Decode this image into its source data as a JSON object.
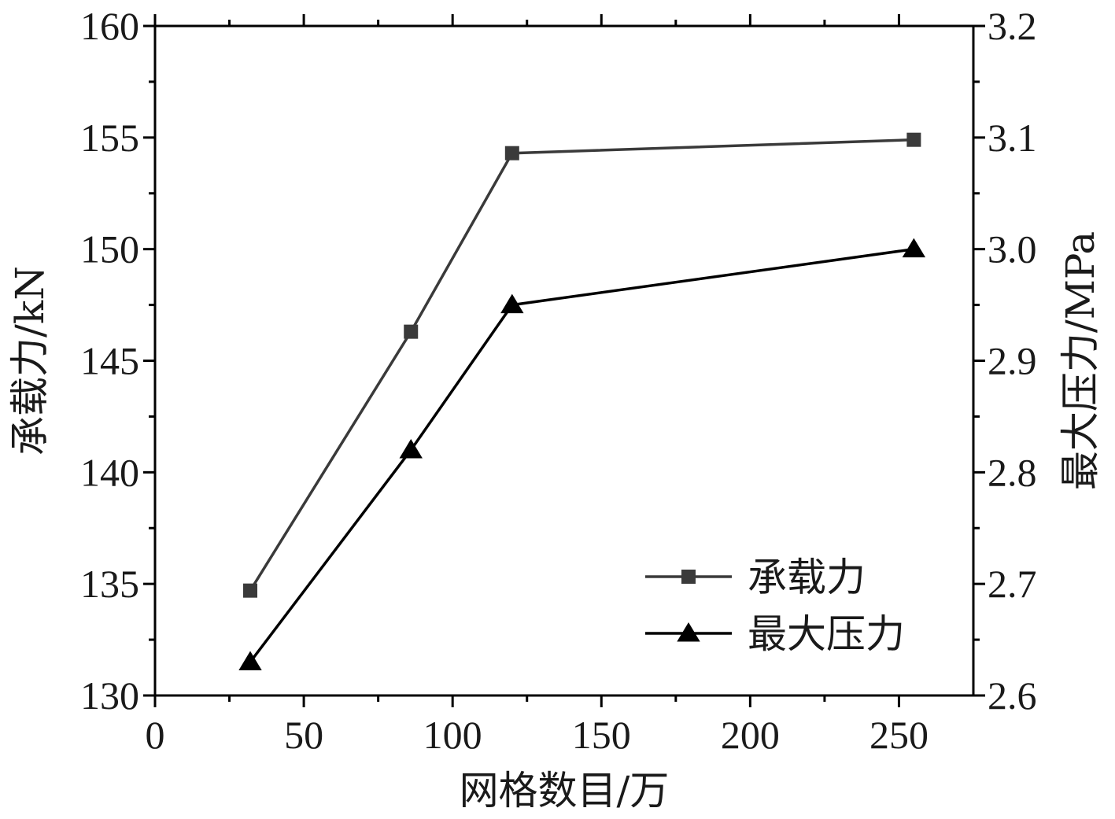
{
  "chart_data": {
    "type": "line",
    "xlabel": "网格数目/万",
    "ylabel": "承载力/kN",
    "y2label": "最大压力/MPa",
    "xlim": [
      0,
      275
    ],
    "ylim": [
      130,
      160
    ],
    "y2lim": [
      2.6,
      3.2
    ],
    "xticks": [
      0,
      50,
      100,
      150,
      200,
      250
    ],
    "yticks": [
      130,
      135,
      140,
      145,
      150,
      155,
      160
    ],
    "y2ticks": [
      "2.6",
      "2.7",
      "2.8",
      "2.9",
      "3.0",
      "3.1",
      "3.2"
    ],
    "x": [
      32,
      86,
      120,
      255
    ],
    "grid": false,
    "legend_position": "bottom-right",
    "series": [
      {
        "name": "承载力",
        "axis": "left",
        "marker": "square",
        "color": "#3a3a3a",
        "values": [
          134.7,
          146.3,
          154.3,
          154.9
        ]
      },
      {
        "name": "最大压力",
        "axis": "right",
        "marker": "triangle",
        "color": "#000000",
        "values": [
          2.63,
          2.82,
          2.95,
          3.0
        ]
      }
    ]
  }
}
